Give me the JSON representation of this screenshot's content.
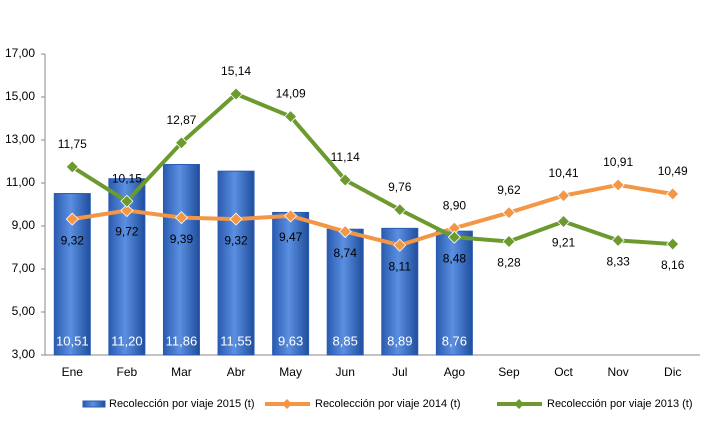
{
  "chart_data": {
    "type": "bar",
    "categories": [
      "Ene",
      "Feb",
      "Mar",
      "Abr",
      "May",
      "Jun",
      "Jul",
      "Ago",
      "Sep",
      "Oct",
      "Nov",
      "Dic"
    ],
    "series": [
      {
        "name": "Recolección por viaje 2015 (t)",
        "type": "bar",
        "color": "#3a6fc4",
        "values": [
          10.51,
          11.2,
          11.86,
          11.55,
          9.63,
          8.85,
          8.89,
          8.76,
          null,
          null,
          null,
          null
        ],
        "value_labels": [
          "10,51",
          "11,20",
          "11,86",
          "11,55",
          "9,63",
          "8,85",
          "8,89",
          "8,76",
          null,
          null,
          null,
          null
        ]
      },
      {
        "name": "Recolección por viaje 2014 (t)",
        "type": "line",
        "color": "#f39645",
        "values": [
          9.32,
          9.72,
          9.39,
          9.32,
          9.47,
          8.74,
          8.11,
          8.9,
          9.62,
          10.41,
          10.91,
          10.49
        ],
        "value_labels": [
          "9,32",
          "9,72",
          "9,39",
          "9,32",
          "9,47",
          "8,74",
          "8,11",
          "8,90",
          "9,62",
          "10,41",
          "10,91",
          "10,49"
        ]
      },
      {
        "name": "Recolección por viaje 2013 (t)",
        "type": "line",
        "color": "#6d9a2e",
        "values": [
          11.75,
          10.15,
          12.87,
          15.14,
          14.09,
          11.14,
          9.76,
          8.48,
          8.28,
          9.21,
          8.33,
          8.16
        ],
        "value_labels": [
          "11,75",
          "10,15",
          "12,87",
          "15,14",
          "14,09",
          "11,14",
          "9,76",
          "8,48",
          "8,28",
          "9,21",
          "8,33",
          "8,16"
        ]
      }
    ],
    "ylim": [
      3,
      17
    ],
    "yticks": [
      {
        "value": 3,
        "label": "3,00"
      },
      {
        "value": 5,
        "label": "5,00"
      },
      {
        "value": 7,
        "label": "7,00"
      },
      {
        "value": 9,
        "label": "9,00"
      },
      {
        "value": 11,
        "label": "11,00"
      },
      {
        "value": 13,
        "label": "13,00"
      },
      {
        "value": 15,
        "label": "15,00"
      },
      {
        "value": 17,
        "label": "17,00"
      }
    ],
    "grid": false,
    "legend": "bottom"
  }
}
